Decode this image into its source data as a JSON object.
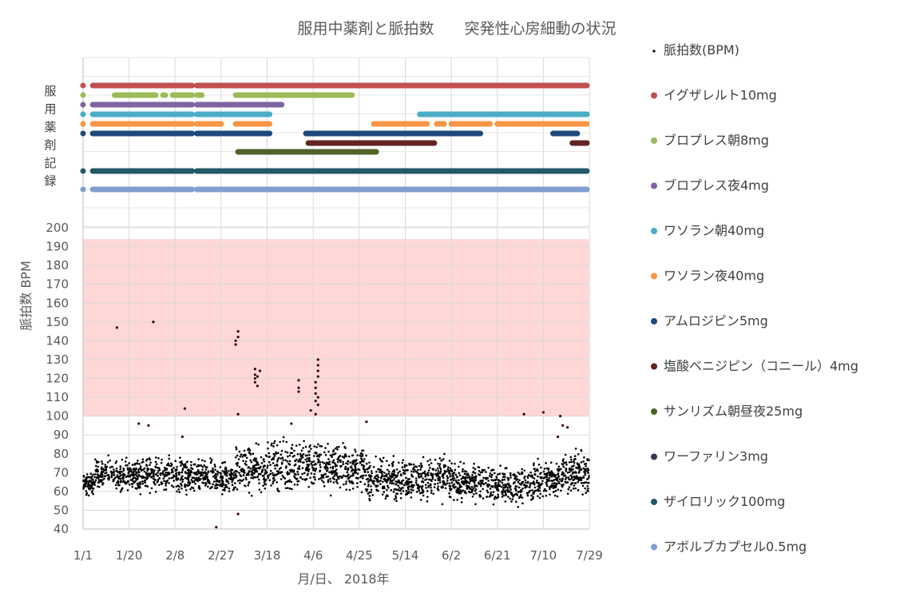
{
  "chart_data": {
    "type": "scatter",
    "title": "服用中薬剤と脈拍数　　突発性心房細動の状況",
    "xlabel": "月/日、 2018年",
    "ylabel": "脈拍数 BPM",
    "x_tick_labels": [
      "1/1",
      "1/20",
      "2/8",
      "2/27",
      "3/18",
      "4/6",
      "4/25",
      "5/14",
      "6/2",
      "6/21",
      "7/10",
      "7/29"
    ],
    "x_tick_days": [
      0,
      19,
      38,
      57,
      76,
      95,
      114,
      133,
      152,
      171,
      190,
      209
    ],
    "xlim_days": [
      0,
      209
    ],
    "y_ticks": [
      40,
      50,
      60,
      70,
      80,
      90,
      100,
      110,
      120,
      130,
      140,
      150,
      160,
      170,
      180,
      190,
      200
    ],
    "ylim": [
      40,
      200
    ],
    "grid": true,
    "legend_position": "right",
    "alert_band": {
      "from": 100,
      "to": 194,
      "color": "#ffd7d7"
    },
    "medication_track_label": [
      "服",
      "用",
      "薬",
      "剤",
      "記",
      "録"
    ],
    "legend": [
      {
        "label": "脈拍数(BPM)",
        "color": "#000000",
        "marker": "dot"
      },
      {
        "label": "イグザレルト10mg",
        "color": "#c0504d"
      },
      {
        "label": "ブロプレス朝8mg",
        "color": "#9bbb59"
      },
      {
        "label": "ブロプレス夜4mg",
        "color": "#8064a2"
      },
      {
        "label": "ワソラン朝40mg",
        "color": "#4bacc6"
      },
      {
        "label": "ワソラン夜40mg",
        "color": "#f79646"
      },
      {
        "label": "アムロジピン5mg",
        "color": "#1f497d"
      },
      {
        "label": "塩酸ベニジピン（コニール）4mg",
        "color": "#632423"
      },
      {
        "label": "サンリズム朝昼夜25mg",
        "color": "#4f6228"
      },
      {
        "label": "ワーファリン3mg",
        "color": "#3f3151"
      },
      {
        "label": "ザイロリック100mg",
        "color": "#215968"
      },
      {
        "label": "アボルブカプセル0.5mg",
        "color": "#7f9fd0"
      }
    ],
    "medications": [
      {
        "name": "イグザレルト10mg",
        "color": "#c0504d",
        "periods": [
          [
            0,
            0
          ],
          [
            4,
            45
          ],
          [
            47,
            57
          ],
          [
            58,
            208
          ]
        ]
      },
      {
        "name": "ブロプレス朝8mg",
        "color": "#9bbb59",
        "periods": [
          [
            0,
            0
          ],
          [
            13,
            30
          ],
          [
            33,
            34
          ],
          [
            37,
            45
          ],
          [
            47,
            49
          ],
          [
            63,
            111
          ]
        ]
      },
      {
        "name": "ブロプレス夜4mg",
        "color": "#8064a2",
        "periods": [
          [
            0,
            0
          ],
          [
            4,
            45
          ],
          [
            47,
            57
          ],
          [
            58,
            82
          ]
        ]
      },
      {
        "name": "ワソラン朝40mg",
        "color": "#4bacc6",
        "periods": [
          [
            0,
            0
          ],
          [
            4,
            45
          ],
          [
            47,
            57
          ],
          [
            58,
            77
          ],
          [
            139,
            208
          ]
        ]
      },
      {
        "name": "ワソラン夜40mg",
        "color": "#f79646",
        "periods": [
          [
            0,
            0
          ],
          [
            4,
            45
          ],
          [
            47,
            57
          ],
          [
            63,
            77
          ],
          [
            120,
            142
          ],
          [
            146,
            149
          ],
          [
            152,
            168
          ],
          [
            171,
            208
          ]
        ]
      },
      {
        "name": "アムロジピン5mg",
        "color": "#1f497d",
        "periods": [
          [
            0,
            0
          ],
          [
            4,
            45
          ],
          [
            47,
            57
          ],
          [
            58,
            77
          ],
          [
            92,
            164
          ],
          [
            194,
            204
          ]
        ]
      },
      {
        "name": "塩酸ベニジピン（コニール）4mg",
        "color": "#632423",
        "periods": [
          [
            93,
            145
          ],
          [
            202,
            208
          ]
        ]
      },
      {
        "name": "サンリズム朝昼夜25mg",
        "color": "#4f6228",
        "periods": [
          [
            64,
            121
          ]
        ]
      },
      {
        "name": "ワーファリン3mg",
        "color": "#3f3151",
        "periods": []
      },
      {
        "name": "ザイロリック100mg",
        "color": "#215968",
        "periods": [
          [
            0,
            0
          ],
          [
            4,
            45
          ],
          [
            47,
            57
          ],
          [
            58,
            208
          ]
        ]
      },
      {
        "name": "アボルブカプセル0.5mg",
        "color": "#7f9fd0",
        "periods": [
          [
            0,
            0
          ],
          [
            4,
            45
          ],
          [
            47,
            57
          ],
          [
            58,
            208
          ]
        ]
      }
    ],
    "pulse_series": {
      "name": "脈拍数(BPM)",
      "note_daily_ranges": [
        [
          0,
          4,
          56,
          72
        ],
        [
          5,
          20,
          58,
          80
        ],
        [
          21,
          40,
          56,
          82
        ],
        [
          41,
          50,
          56,
          80
        ],
        [
          51,
          62,
          55,
          80
        ],
        [
          63,
          75,
          56,
          88
        ],
        [
          76,
          95,
          55,
          92
        ],
        [
          96,
          115,
          55,
          90
        ],
        [
          116,
          150,
          52,
          82
        ],
        [
          151,
          168,
          52,
          78
        ],
        [
          169,
          185,
          50,
          75
        ],
        [
          186,
          195,
          52,
          80
        ],
        [
          196,
          208,
          55,
          85
        ]
      ],
      "outliers": [
        [
          14,
          147
        ],
        [
          29,
          150
        ],
        [
          42,
          104
        ],
        [
          41,
          89
        ],
        [
          63,
          138
        ],
        [
          63,
          140
        ],
        [
          64,
          142
        ],
        [
          64,
          145
        ],
        [
          64,
          101
        ],
        [
          71,
          118
        ],
        [
          71,
          120
        ],
        [
          71,
          122
        ],
        [
          71,
          125
        ],
        [
          72,
          116
        ],
        [
          72,
          121
        ],
        [
          73,
          124
        ],
        [
          89,
          115
        ],
        [
          89,
          119
        ],
        [
          89,
          113
        ],
        [
          94,
          103
        ],
        [
          96,
          101
        ],
        [
          96,
          108
        ],
        [
          96,
          112
        ],
        [
          96,
          115
        ],
        [
          96,
          118
        ],
        [
          97,
          121
        ],
        [
          97,
          124
        ],
        [
          97,
          127
        ],
        [
          97,
          130
        ],
        [
          97,
          110
        ],
        [
          97,
          106
        ],
        [
          117,
          97
        ],
        [
          86,
          96
        ],
        [
          55,
          41
        ],
        [
          64,
          48
        ],
        [
          182,
          101
        ],
        [
          190,
          102
        ],
        [
          197,
          100
        ],
        [
          198,
          95
        ],
        [
          200,
          94
        ],
        [
          196,
          89
        ],
        [
          27,
          95
        ],
        [
          23,
          96
        ]
      ]
    }
  }
}
